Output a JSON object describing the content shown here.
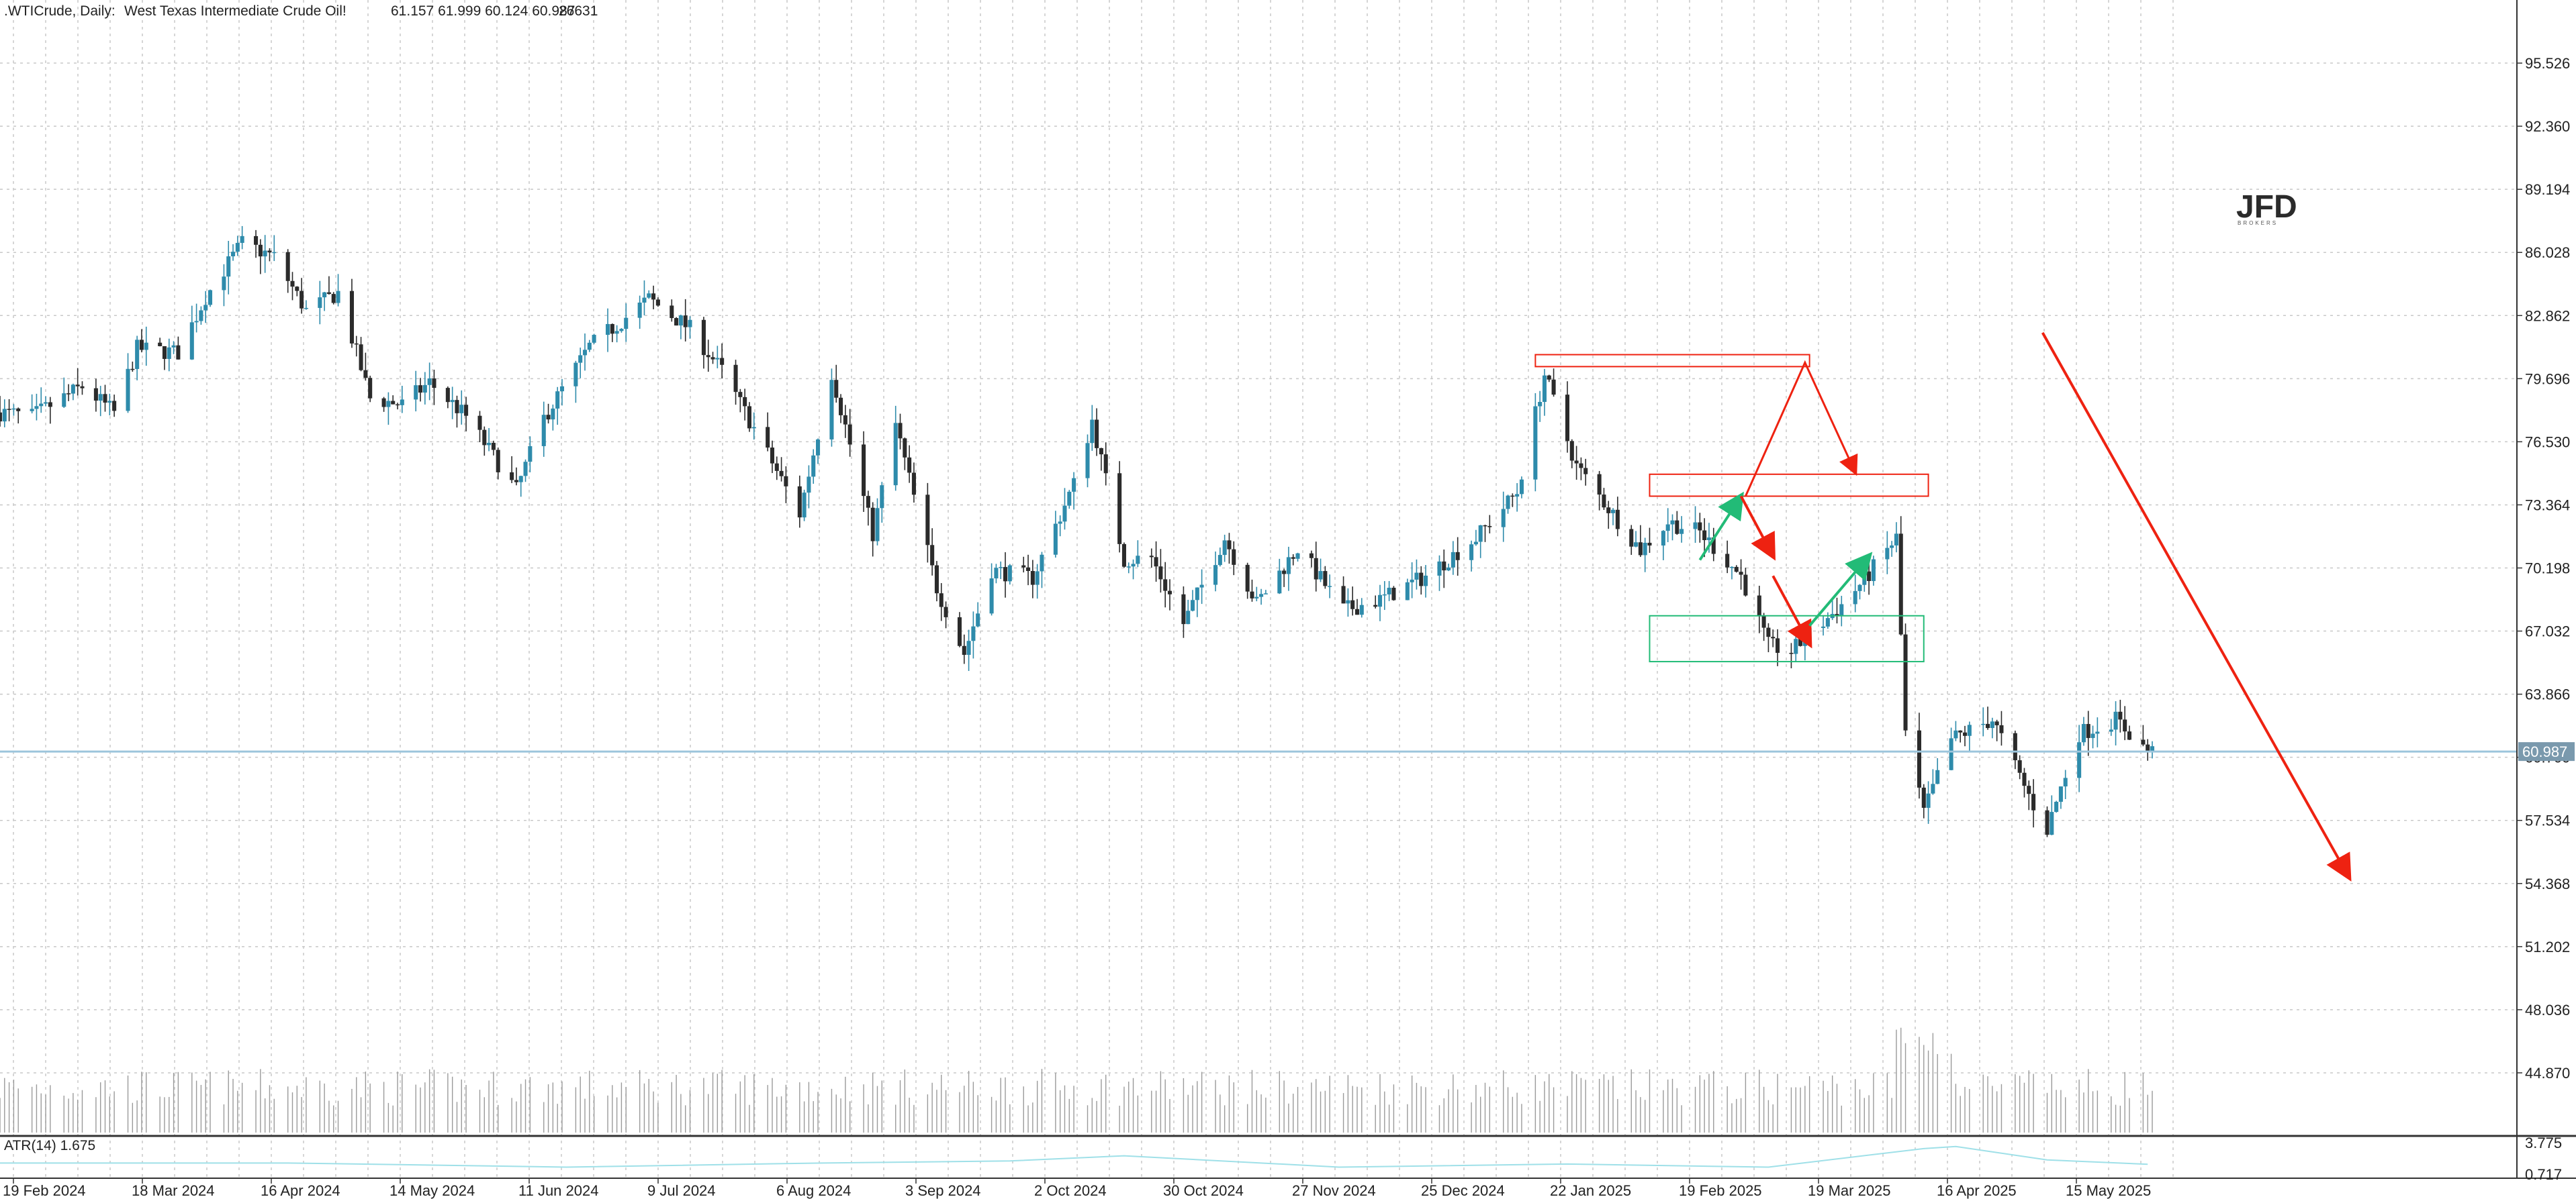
{
  "header": {
    "symbol": ".WTICrude, Daily:",
    "description": "West Texas Intermediate Crude Oil!",
    "ohlc": "61.157 61.999 60.124 60.987",
    "volume": "26631"
  },
  "logo": {
    "text": "JFD",
    "subtext": "BROKERS"
  },
  "price_axis": {
    "labels": [
      "95.526",
      "92.360",
      "89.194",
      "86.028",
      "82.862",
      "79.696",
      "76.530",
      "73.364",
      "70.198",
      "67.032",
      "63.866",
      "60.700",
      "57.534",
      "54.368",
      "51.202",
      "48.036",
      "44.870"
    ],
    "current_price": "60.987"
  },
  "indicator": {
    "label": "ATR(14) 1.675",
    "axis_labels": [
      "3.775",
      "0.717"
    ]
  },
  "time_axis": {
    "labels": [
      "19 Feb 2024",
      "18 Mar 2024",
      "16 Apr 2024",
      "14 May 2024",
      "11 Jun 2024",
      "9 Jul 2024",
      "6 Aug 2024",
      "3 Sep 2024",
      "2 Oct 2024",
      "30 Oct 2024",
      "27 Nov 2024",
      "25 Dec 2024",
      "22 Jan 2025",
      "19 Feb 2025",
      "19 Mar 2025",
      "16 Apr 2025",
      "15 May 2025"
    ]
  },
  "colors": {
    "bull": "#2e8bab",
    "bear": "#2b2b2b",
    "grid": "#c8c8c8",
    "price_line": "#9cc5dc",
    "annotation_red": "#ee2211",
    "annotation_green": "#22bb77",
    "atr_line": "#9fe0e8",
    "volume": "#9a9a9a"
  },
  "chart_data": {
    "type": "candlestick",
    "title": ".WTICrude, Daily: West Texas Intermediate Crude Oil!",
    "x_range": [
      "2024-02-12",
      "2025-05-28"
    ],
    "y_range": [
      41.704,
      98.692
    ],
    "key_points": [
      {
        "date": "2024-02-12",
        "price": 78.0
      },
      {
        "date": "2024-02-19",
        "price": 77.8
      },
      {
        "date": "2024-03-01",
        "price": 79.3
      },
      {
        "date": "2024-03-08",
        "price": 78.0
      },
      {
        "date": "2024-03-13",
        "price": 81.2
      },
      {
        "date": "2024-03-22",
        "price": 81.0
      },
      {
        "date": "2024-03-28",
        "price": 83.8
      },
      {
        "date": "2024-04-05",
        "price": 86.5
      },
      {
        "date": "2024-04-12",
        "price": 85.8
      },
      {
        "date": "2024-04-19",
        "price": 83.1
      },
      {
        "date": "2024-04-26",
        "price": 84.0
      },
      {
        "date": "2024-05-03",
        "price": 78.7
      },
      {
        "date": "2024-05-10",
        "price": 78.4
      },
      {
        "date": "2024-05-16",
        "price": 79.5
      },
      {
        "date": "2024-05-24",
        "price": 77.8
      },
      {
        "date": "2024-06-04",
        "price": 74.1
      },
      {
        "date": "2024-06-10",
        "price": 77.7
      },
      {
        "date": "2024-06-20",
        "price": 81.3
      },
      {
        "date": "2024-07-03",
        "price": 83.7
      },
      {
        "date": "2024-07-12",
        "price": 82.2
      },
      {
        "date": "2024-07-19",
        "price": 80.1
      },
      {
        "date": "2024-07-26",
        "price": 77.2
      },
      {
        "date": "2024-08-05",
        "price": 72.9
      },
      {
        "date": "2024-08-12",
        "price": 80.0
      },
      {
        "date": "2024-08-21",
        "price": 71.9
      },
      {
        "date": "2024-08-26",
        "price": 77.4
      },
      {
        "date": "2024-09-04",
        "price": 69.2
      },
      {
        "date": "2024-09-10",
        "price": 65.9
      },
      {
        "date": "2024-09-16",
        "price": 70.1
      },
      {
        "date": "2024-09-25",
        "price": 69.7
      },
      {
        "date": "2024-10-04",
        "price": 74.4
      },
      {
        "date": "2024-10-08",
        "price": 77.6
      },
      {
        "date": "2024-10-15",
        "price": 70.6
      },
      {
        "date": "2024-10-21",
        "price": 70.7
      },
      {
        "date": "2024-10-28",
        "price": 67.4
      },
      {
        "date": "2024-11-06",
        "price": 71.7
      },
      {
        "date": "2024-11-13",
        "price": 68.4
      },
      {
        "date": "2024-11-22",
        "price": 71.2
      },
      {
        "date": "2024-12-02",
        "price": 68.1
      },
      {
        "date": "2024-12-10",
        "price": 68.6
      },
      {
        "date": "2024-12-20",
        "price": 69.8
      },
      {
        "date": "2024-12-31",
        "price": 71.7
      },
      {
        "date": "2025-01-09",
        "price": 74.0
      },
      {
        "date": "2025-01-15",
        "price": 79.9
      },
      {
        "date": "2025-01-22",
        "price": 75.3
      },
      {
        "date": "2025-01-31",
        "price": 72.6
      },
      {
        "date": "2025-02-05",
        "price": 71.1
      },
      {
        "date": "2025-02-11",
        "price": 72.5
      },
      {
        "date": "2025-02-18",
        "price": 72.0
      },
      {
        "date": "2025-02-27",
        "price": 69.8
      },
      {
        "date": "2025-03-05",
        "price": 66.3
      },
      {
        "date": "2025-03-10",
        "price": 66.0
      },
      {
        "date": "2025-03-20",
        "price": 68.1
      },
      {
        "date": "2025-03-26",
        "price": 69.6
      },
      {
        "date": "2025-04-02",
        "price": 71.7
      },
      {
        "date": "2025-04-04",
        "price": 61.9
      },
      {
        "date": "2025-04-08",
        "price": 57.9
      },
      {
        "date": "2025-04-14",
        "price": 61.6
      },
      {
        "date": "2025-04-23",
        "price": 62.6
      },
      {
        "date": "2025-05-02",
        "price": 58.3
      },
      {
        "date": "2025-05-05",
        "price": 57.1
      },
      {
        "date": "2025-05-12",
        "price": 61.9
      },
      {
        "date": "2025-05-20",
        "price": 62.6
      },
      {
        "date": "2025-05-27",
        "price": 60.99
      }
    ],
    "annotations": {
      "red_boxes": [
        {
          "from": "2025-01-13",
          "to": "2025-03-14",
          "lo": 80.3,
          "hi": 80.9
        },
        {
          "from": "2025-02-07",
          "to": "2025-04-09",
          "lo": 73.8,
          "hi": 74.9
        }
      ],
      "green_box": {
        "from": "2025-02-07",
        "to": "2025-04-08",
        "lo": 65.5,
        "hi": 67.8
      },
      "red_path": [
        {
          "date": "2025-02-28",
          "price": 73.8
        },
        {
          "date": "2025-03-13",
          "price": 80.5
        },
        {
          "date": "2025-03-24",
          "price": 75.0
        }
      ],
      "green_arrow_up_1": [
        {
          "date": "2025-02-18",
          "price": 70.6
        },
        {
          "date": "2025-02-27",
          "price": 73.8
        }
      ],
      "red_arrow_down": [
        {
          "date": "2025-02-27",
          "price": 73.8
        },
        {
          "date": "2025-03-06",
          "price": 70.8
        }
      ],
      "red_arrow_down_2": [
        {
          "date": "2025-03-06",
          "price": 69.8
        },
        {
          "date": "2025-03-14",
          "price": 66.4
        }
      ],
      "green_arrow_up_2": [
        {
          "date": "2025-03-14",
          "price": 67.3
        },
        {
          "date": "2025-03-27",
          "price": 70.8
        }
      ],
      "big_red_arrow": [
        {
          "date": "2025-05-04",
          "price": 82.0
        },
        {
          "date": "2025-07-10",
          "price": 54.7
        }
      ]
    },
    "atr": {
      "name": "ATR(14) 1.675",
      "range": [
        0.717,
        3.775
      ],
      "key_points": [
        {
          "date": "2024-02-12",
          "v": 1.8
        },
        {
          "date": "2024-04-15",
          "v": 1.8
        },
        {
          "date": "2024-06-15",
          "v": 1.4
        },
        {
          "date": "2024-08-10",
          "v": 1.8
        },
        {
          "date": "2024-09-20",
          "v": 2.0
        },
        {
          "date": "2024-10-15",
          "v": 2.5
        },
        {
          "date": "2024-12-01",
          "v": 1.4
        },
        {
          "date": "2025-01-20",
          "v": 1.7
        },
        {
          "date": "2025-03-05",
          "v": 1.4
        },
        {
          "date": "2025-04-08",
          "v": 3.2
        },
        {
          "date": "2025-04-15",
          "v": 3.4
        },
        {
          "date": "2025-05-05",
          "v": 2.1
        },
        {
          "date": "2025-05-27",
          "v": 1.675
        }
      ]
    }
  }
}
